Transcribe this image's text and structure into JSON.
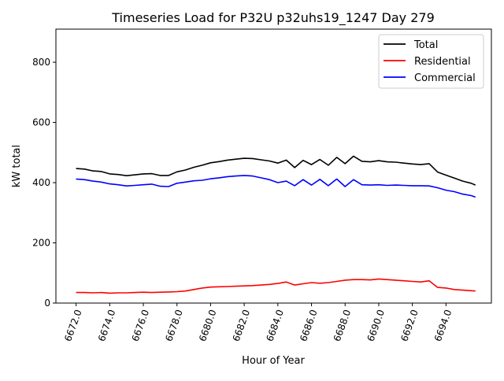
{
  "chart_data": {
    "type": "line",
    "title": "Timeseries Load for P32U p32uhs19_1247  Day 279",
    "xlabel": "Hour of Year",
    "ylabel": "kW total",
    "xlim": [
      6670.8,
      6696.7
    ],
    "ylim": [
      0,
      910
    ],
    "xticks": [
      6672,
      6674,
      6676,
      6678,
      6680,
      6682,
      6684,
      6686,
      6688,
      6690,
      6692,
      6694
    ],
    "xtick_labels": [
      "6672.0",
      "6674.0",
      "6676.0",
      "6678.0",
      "6680.0",
      "6682.0",
      "6684.0",
      "6686.0",
      "6688.0",
      "6690.0",
      "6692.0",
      "6694.0"
    ],
    "yticks": [
      0,
      200,
      400,
      600,
      800
    ],
    "ytick_labels": [
      "0",
      "200",
      "400",
      "600",
      "800"
    ],
    "grid": false,
    "legend_position": "top-right",
    "x": [
      6672,
      6672.5,
      6673,
      6673.5,
      6674,
      6674.5,
      6675,
      6675.5,
      6676,
      6676.5,
      6677,
      6677.5,
      6678,
      6678.5,
      6679,
      6679.5,
      6680,
      6680.5,
      6681,
      6681.5,
      6682,
      6682.5,
      6683,
      6683.5,
      6684,
      6684.5,
      6685,
      6685.5,
      6686,
      6686.5,
      6687,
      6687.5,
      6688,
      6688.5,
      6689,
      6689.5,
      6690,
      6690.5,
      6691,
      6691.5,
      6692,
      6692.5,
      6693,
      6693.5,
      6694,
      6694.5,
      6695,
      6695.5,
      6695.75
    ],
    "series": [
      {
        "name": "Total",
        "color": "#000000",
        "values": [
          447,
          445,
          439,
          437,
          429,
          427,
          423,
          426,
          429,
          430,
          424,
          424,
          436,
          442,
          451,
          458,
          466,
          470,
          475,
          478,
          481,
          480,
          476,
          472,
          465,
          475,
          450,
          474,
          460,
          477,
          458,
          484,
          463,
          488,
          471,
          469,
          473,
          469,
          468,
          465,
          462,
          460,
          463,
          435,
          425,
          415,
          405,
          398,
          392
        ]
      },
      {
        "name": "Residential",
        "color": "#ff0000",
        "values": [
          35,
          35,
          34,
          35,
          33,
          34,
          34,
          35,
          36,
          35,
          36,
          37,
          38,
          40,
          45,
          50,
          53,
          54,
          55,
          56,
          57,
          58,
          60,
          62,
          65,
          70,
          60,
          64,
          68,
          66,
          68,
          72,
          76,
          78,
          78,
          77,
          80,
          78,
          76,
          74,
          72,
          70,
          74,
          52,
          50,
          45,
          43,
          41,
          40
        ]
      },
      {
        "name": "Commercial",
        "color": "#0000ff",
        "values": [
          412,
          410,
          405,
          402,
          396,
          393,
          389,
          391,
          393,
          395,
          388,
          387,
          398,
          402,
          406,
          408,
          413,
          416,
          420,
          422,
          424,
          422,
          416,
          410,
          400,
          405,
          390,
          410,
          392,
          411,
          390,
          412,
          387,
          410,
          393,
          392,
          393,
          391,
          392,
          391,
          390,
          390,
          389,
          383,
          375,
          370,
          362,
          357,
          352
        ]
      }
    ]
  }
}
